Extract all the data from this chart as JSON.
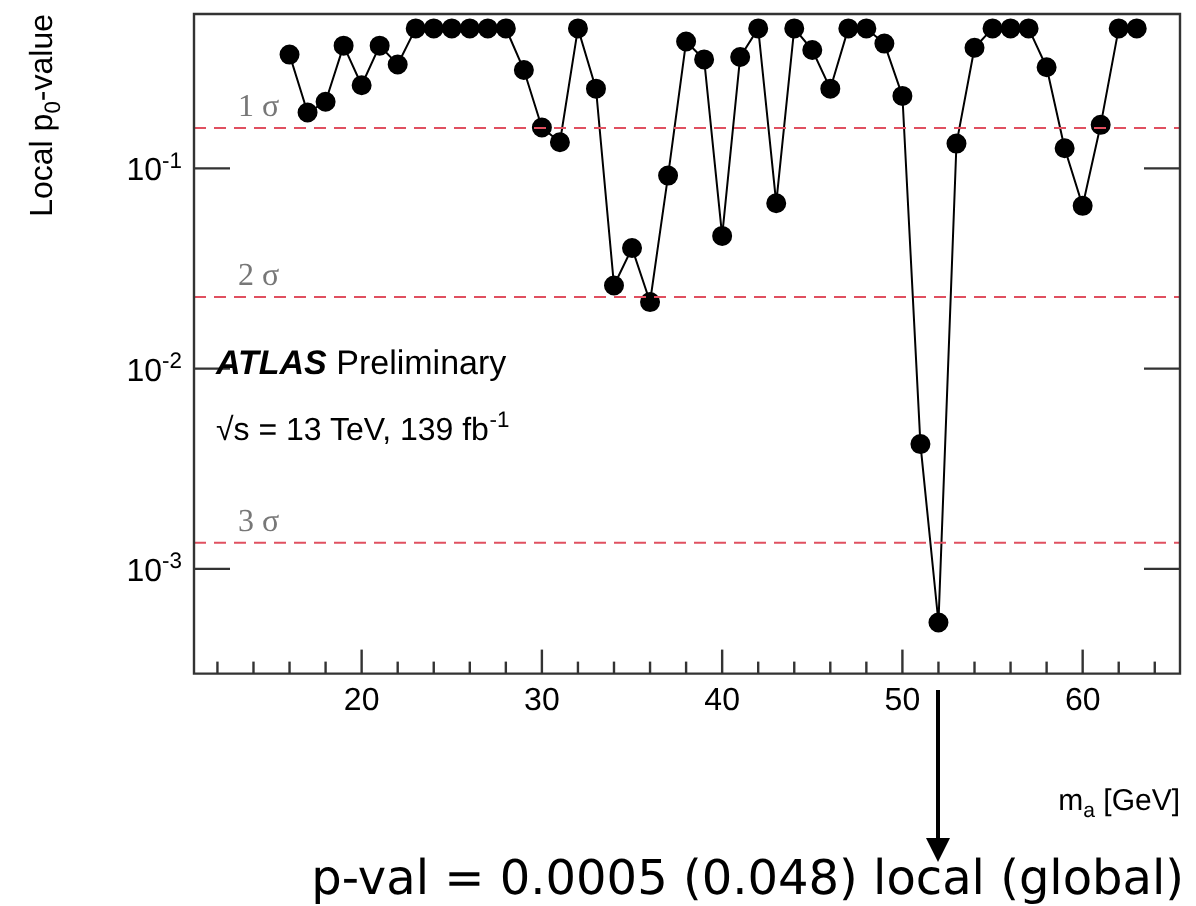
{
  "chart_data": {
    "type": "line",
    "xlabel": "m$_{a}$ [GeV]",
    "ylabel": "Local p$_{0}$-value",
    "x": [
      16,
      17,
      18,
      19,
      20,
      21,
      22,
      23,
      24,
      25,
      26,
      27,
      28,
      29,
      30,
      31,
      32,
      33,
      34,
      35,
      36,
      37,
      38,
      39,
      40,
      41,
      42,
      43,
      44,
      45,
      46,
      47,
      48,
      49,
      50,
      51,
      52,
      53,
      54,
      55,
      56,
      57,
      58,
      59,
      60,
      61,
      62,
      63
    ],
    "series": [
      {
        "color": "#000000",
        "values": [
          0.37,
          0.19,
          0.215,
          0.41,
          0.26,
          0.41,
          0.33,
          0.5,
          0.5,
          0.5,
          0.5,
          0.5,
          0.5,
          0.31,
          0.16,
          0.135,
          0.5,
          0.25,
          0.026,
          0.04,
          0.0215,
          0.092,
          0.43,
          0.35,
          0.046,
          0.36,
          0.5,
          0.067,
          0.5,
          0.39,
          0.25,
          0.5,
          0.5,
          0.42,
          0.23,
          0.0042,
          0.00054,
          0.133,
          0.4,
          0.5,
          0.5,
          0.5,
          0.32,
          0.126,
          0.065,
          0.165,
          0.5,
          0.5
        ]
      }
    ],
    "xlim": [
      10.7,
      65.4
    ],
    "ylim": [
      0.0003,
      0.59
    ],
    "log": "y",
    "grid": false,
    "legend": false,
    "marker": "circle",
    "line_style": "solid",
    "xticks": [
      {
        "value": 12,
        "label": null
      },
      {
        "value": 14,
        "label": null
      },
      {
        "value": 16,
        "label": null
      },
      {
        "value": 18,
        "label": null
      },
      20,
      {
        "value": 22,
        "label": null
      },
      {
        "value": 24,
        "label": null
      },
      {
        "value": 26,
        "label": null
      },
      {
        "value": 28,
        "label": null
      },
      30,
      {
        "value": 32,
        "label": null
      },
      {
        "value": 34,
        "label": null
      },
      {
        "value": 36,
        "label": null
      },
      {
        "value": 38,
        "label": null
      },
      40,
      {
        "value": 42,
        "label": null
      },
      {
        "value": 44,
        "label": null
      },
      {
        "value": 46,
        "label": null
      },
      {
        "value": 48,
        "label": null
      },
      50,
      {
        "value": 52,
        "label": null
      },
      {
        "value": 54,
        "label": null
      },
      {
        "value": 56,
        "label": null
      },
      {
        "value": 58,
        "label": null
      },
      60,
      {
        "value": 62,
        "label": null
      },
      {
        "value": 64,
        "label": null
      }
    ],
    "yticks": [
      {
        "value": 0.001,
        "label": "10$^{-3}$"
      },
      {
        "value": 0.01,
        "label": "10$^{-2}$"
      },
      {
        "value": 0.1,
        "label": "10$^{-1}$"
      }
    ],
    "ref_lines": [
      {
        "axis": "y",
        "value": 0.159,
        "label": "1 σ",
        "color": "#e05060",
        "line_style": "dashed"
      },
      {
        "axis": "y",
        "value": 0.0228,
        "label": "2 σ",
        "color": "#e05060",
        "line_style": "dashed"
      },
      {
        "axis": "y",
        "value": 0.00135,
        "label": "3 σ",
        "color": "#e05060",
        "line_style": "dashed"
      }
    ],
    "annotations": [
      "ATLAS Preliminary",
      "√s = 13 TeV, 139 fb$^{-1}$",
      "p-val = 0.0005 (0.048) local (global)"
    ]
  }
}
